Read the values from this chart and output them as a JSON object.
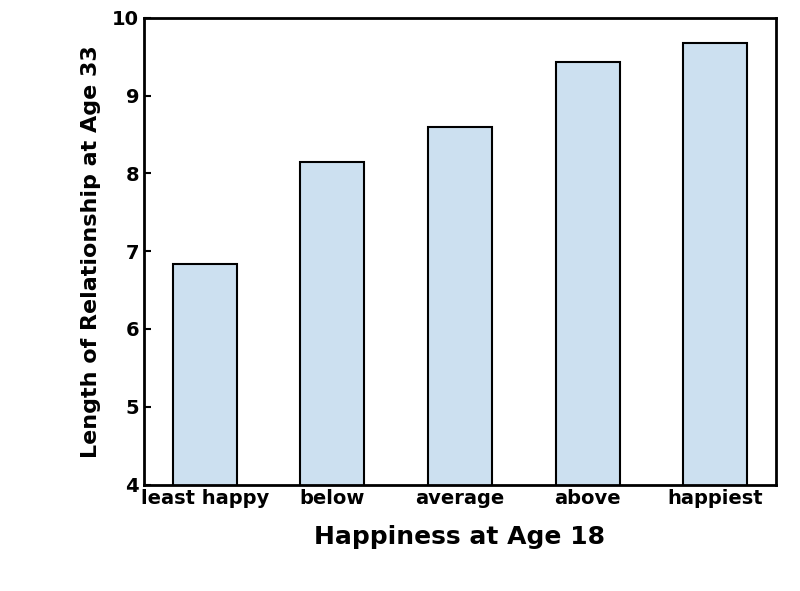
{
  "categories": [
    "least happy",
    "below",
    "average",
    "above",
    "happiest"
  ],
  "values": [
    6.83,
    8.15,
    8.6,
    9.43,
    9.67
  ],
  "bar_color": "#cce0f0",
  "bar_edgecolor": "#000000",
  "bar_linewidth": 1.5,
  "xlabel": "Happiness at Age 18",
  "ylabel": "Length of Relationship at Age 33",
  "ylim": [
    4,
    10
  ],
  "yticks": [
    4,
    5,
    6,
    7,
    8,
    9,
    10
  ],
  "xlabel_fontsize": 18,
  "ylabel_fontsize": 16,
  "tick_fontsize": 14,
  "xlabel_fontweight": "bold",
  "ylabel_fontweight": "bold",
  "tick_fontweight": "bold",
  "background_color": "#ffffff",
  "bar_width": 0.5,
  "spine_linewidth": 2.0
}
